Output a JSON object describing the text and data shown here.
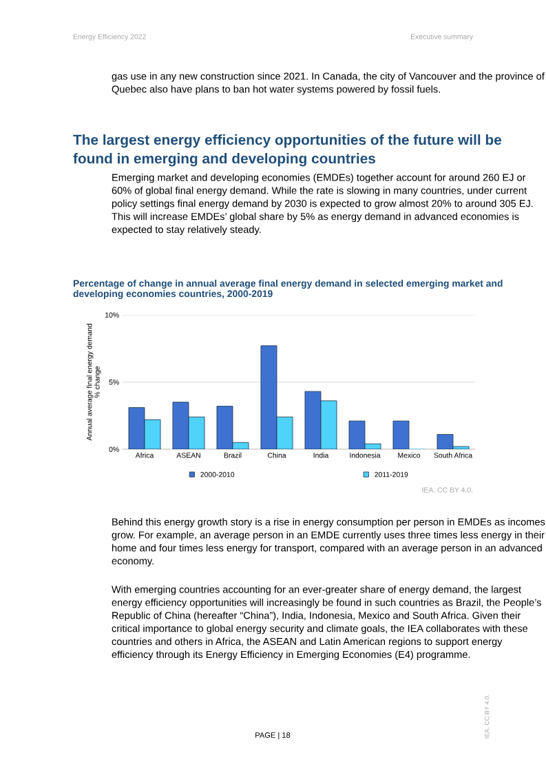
{
  "chart_data": {
    "type": "bar",
    "title": "Percentage of change in annual average final energy demand in selected emerging market and developing economies countries, 2000-2019",
    "ylabel": "Annual average final energy demand\n% change",
    "categories": [
      "Africa",
      "ASEAN",
      "Brazil",
      "China",
      "India",
      "Indonesia",
      "Mexico",
      "South Africa"
    ],
    "series": [
      {
        "name": "2000-2010",
        "color": "#3f72d0",
        "values": [
          3.1,
          3.5,
          3.2,
          7.7,
          4.3,
          2.1,
          2.1,
          1.1
        ]
      },
      {
        "name": "2011-2019",
        "color": "#4fd3fa",
        "values": [
          2.2,
          2.4,
          0.5,
          2.4,
          3.6,
          0.4,
          0.0,
          0.2
        ]
      }
    ],
    "ylim": [
      0,
      10
    ],
    "yticks": [
      {
        "value": 0,
        "label": "0%"
      },
      {
        "value": 5,
        "label": "5%"
      },
      {
        "value": 10,
        "label": "10%"
      }
    ],
    "grid": "y",
    "legend": "bottom",
    "annotations": [
      "Energy Efficiency 2022",
      "Executive summary",
      "gas use in any new construction since 2021. In Canada, the city of Vancouver and the province of Quebec also have plans to ban hot water systems powered by fossil fuels.",
      "The largest energy efficiency opportunities of the future will be found in emerging and developing countries",
      "Emerging market and developing economies (EMDEs) together account for around 260 EJ or 60% of global final energy demand. While the rate is slowing in many countries, under current policy settings final energy demand by 2030 is expected to grow almost 20% to around 305 EJ. This will increase EMDEs’ global share by 5% as energy demand in advanced economies is expected to stay relatively steady.",
      "IEA. CC BY 4.0.",
      "Behind this energy growth story is a rise in energy consumption per person in EMDEs as incomes grow. For example, an average person in an EMDE currently uses three times less energy in their home and four times less energy for transport, compared with an average person in an advanced economy.",
      "With emerging countries accounting for an ever-greater share of energy demand, the largest energy efficiency opportunities will increasingly be found in such countries as Brazil, the People’s Republic of China (hereafter “China”), India, Indonesia, Mexico and South Africa. Given their critical importance to global energy security and climate goals, the IEA collaborates with these countries and others in Africa, the ASEAN and Latin American regions to support energy efficiency through its Energy Efficiency in Emerging Economies (E4) programme.",
      "PAGE | 18",
      "IEA. CC BY 4.0."
    ]
  }
}
